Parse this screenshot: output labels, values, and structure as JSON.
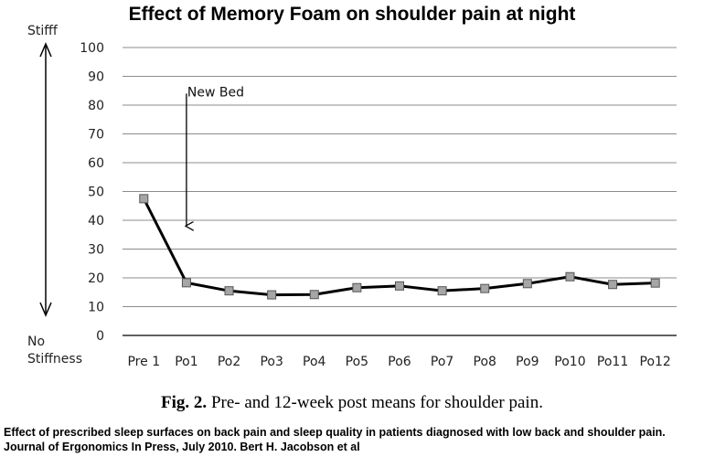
{
  "title": "Effect of Memory Foam on shoulder pain at night",
  "scale_labels": {
    "top": "Stifff",
    "bottom_line1": "No",
    "bottom_line2": "Stiffness"
  },
  "caption": {
    "fig_label": "Fig. 2.",
    "text": "Pre- and 12-week post means for shoulder pain."
  },
  "citation": "Effect of prescribed sleep surfaces on back pain and sleep quality in patients diagnosed with low back and shoulder pain. Journal of Ergonomics In Press,  July 2010. Bert H. Jacobson et al",
  "chart_data": {
    "type": "line",
    "title": "Effect of Memory Foam on shoulder pain at night",
    "categories": [
      "Pre 1",
      "Po1",
      "Po2",
      "Po3",
      "Po4",
      "Po5",
      "Po6",
      "Po7",
      "Po8",
      "Po9",
      "Po10",
      "Po11",
      "Po12"
    ],
    "values": [
      47.5,
      18.3,
      15.5,
      14.1,
      14.2,
      16.6,
      17.2,
      15.5,
      16.3,
      18.0,
      20.4,
      17.7,
      18.2
    ],
    "ylim": [
      0,
      100
    ],
    "yticks": [
      0,
      10,
      20,
      30,
      40,
      50,
      60,
      70,
      80,
      90,
      100
    ],
    "grid": true,
    "line_color": "#000000",
    "marker_fill": "#a6a6a6",
    "annotation": {
      "label": "New Bed",
      "category": "Po1"
    }
  }
}
